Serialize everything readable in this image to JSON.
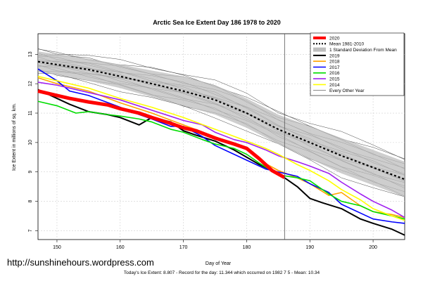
{
  "chart_data": {
    "type": "line",
    "title": "Arctic Sea Ice Extent Day 186 1978 to 2020",
    "xlabel": "Day of Year",
    "ylabel": "Ice Extent in millions of sq. km.",
    "xlim": [
      147,
      205
    ],
    "ylim": [
      6.7,
      13.7
    ],
    "x_ticks": [
      150,
      160,
      170,
      180,
      190,
      200
    ],
    "y_ticks": [
      7,
      8,
      9,
      10,
      11,
      12,
      13
    ],
    "grid": true,
    "legend_position": "top-right",
    "marker_day": 186,
    "mean_band": {
      "name": "Mean 1981-2010",
      "band_name": "1 Standard Deviation From Mean",
      "x": [
        147,
        150,
        155,
        160,
        165,
        170,
        175,
        180,
        185,
        190,
        195,
        200,
        205
      ],
      "mean": [
        12.75,
        12.65,
        12.48,
        12.25,
        12.0,
        11.75,
        11.45,
        11.0,
        10.45,
        10.0,
        9.55,
        9.15,
        8.75
      ],
      "upper": [
        13.1,
        13.0,
        12.85,
        12.65,
        12.45,
        12.25,
        11.95,
        11.5,
        10.95,
        10.55,
        10.15,
        9.75,
        9.35
      ],
      "lower": [
        12.4,
        12.3,
        12.1,
        11.85,
        11.55,
        11.25,
        10.95,
        10.5,
        9.95,
        9.45,
        8.95,
        8.55,
        8.15
      ]
    },
    "series": [
      {
        "name": "2020",
        "color": "#ff0000",
        "width": 5,
        "x": [
          147,
          150,
          152,
          155,
          158,
          160,
          163,
          165,
          168,
          170,
          172,
          175,
          178,
          180,
          182,
          184,
          186
        ],
        "values": [
          11.75,
          11.6,
          11.5,
          11.38,
          11.28,
          11.15,
          11.0,
          10.85,
          10.65,
          10.5,
          10.4,
          10.15,
          9.95,
          9.8,
          9.45,
          9.05,
          8.81
        ]
      },
      {
        "name": "2019",
        "color": "#000000",
        "width": 2,
        "x": [
          147,
          150,
          152,
          155,
          158,
          160,
          163,
          165,
          168,
          170,
          172,
          175,
          178,
          180,
          182,
          185,
          188,
          190,
          192,
          195,
          198,
          200,
          203,
          205
        ],
        "values": [
          11.8,
          11.5,
          11.3,
          11.05,
          10.95,
          10.85,
          10.6,
          10.85,
          10.7,
          10.4,
          10.25,
          10.05,
          9.75,
          9.5,
          9.25,
          8.95,
          8.5,
          8.1,
          7.95,
          7.75,
          7.4,
          7.25,
          7.05,
          6.85
        ]
      },
      {
        "name": "2018",
        "color": "#ffa500",
        "width": 1.6,
        "x": [
          147,
          150,
          155,
          160,
          165,
          170,
          175,
          178,
          180,
          182,
          185,
          188,
          190,
          193,
          195,
          198,
          200,
          203,
          205
        ],
        "values": [
          12.2,
          12.0,
          11.75,
          11.35,
          11.0,
          10.6,
          10.2,
          9.95,
          9.75,
          9.4,
          9.05,
          8.8,
          8.6,
          8.2,
          8.3,
          7.85,
          7.65,
          7.55,
          7.45
        ]
      },
      {
        "name": "2017",
        "color": "#0000ff",
        "width": 1.6,
        "x": [
          147,
          150,
          152,
          155,
          160,
          163,
          165,
          168,
          170,
          173,
          175,
          178,
          180,
          183,
          185,
          188,
          190,
          193,
          195,
          198,
          200,
          203,
          205
        ],
        "values": [
          12.5,
          12.1,
          11.75,
          11.6,
          11.2,
          10.95,
          10.8,
          10.55,
          10.55,
          10.2,
          9.9,
          9.6,
          9.4,
          9.1,
          9.0,
          8.85,
          8.6,
          8.3,
          7.9,
          7.6,
          7.4,
          7.3,
          7.25
        ]
      },
      {
        "name": "2016",
        "color": "#00dd00",
        "width": 1.6,
        "x": [
          147,
          150,
          153,
          155,
          158,
          160,
          163,
          165,
          168,
          170,
          173,
          175,
          178,
          180,
          182,
          185,
          188,
          190,
          193,
          195,
          198,
          200,
          203,
          205
        ],
        "values": [
          11.4,
          11.25,
          11.0,
          11.05,
          10.95,
          10.9,
          10.8,
          10.7,
          10.45,
          10.35,
          10.1,
          9.95,
          9.8,
          9.6,
          9.3,
          8.9,
          8.8,
          8.7,
          8.25,
          8.0,
          7.85,
          7.65,
          7.5,
          7.4
        ]
      },
      {
        "name": "2015",
        "color": "#a020f0",
        "width": 1.6,
        "x": [
          147,
          150,
          155,
          160,
          165,
          170,
          173,
          175,
          178,
          180,
          183,
          185,
          188,
          190,
          193,
          195,
          198,
          200,
          203,
          205
        ],
        "values": [
          12.05,
          11.95,
          11.7,
          11.45,
          11.1,
          10.75,
          10.6,
          10.35,
          10.1,
          10.0,
          9.75,
          9.55,
          9.35,
          9.2,
          8.95,
          8.65,
          8.25,
          8.0,
          7.7,
          7.45
        ]
      },
      {
        "name": "2014",
        "color": "#ffff00",
        "width": 1.6,
        "x": [
          147,
          150,
          155,
          160,
          165,
          170,
          175,
          180,
          183,
          185,
          188,
          190,
          193,
          195,
          198,
          200,
          203,
          205
        ],
        "values": [
          12.25,
          12.1,
          11.85,
          11.5,
          11.2,
          10.85,
          10.45,
          10.05,
          9.8,
          9.6,
          9.25,
          9.05,
          8.7,
          8.4,
          8.05,
          7.75,
          7.5,
          7.35
        ]
      }
    ],
    "legend": [
      "2020",
      "Mean 1981-2010",
      "1 Standard Deviation From Mean",
      "2019",
      "2018",
      "2017",
      "2016",
      "2015",
      "2014",
      "Every Other Year"
    ],
    "other_years_label": "Every Other Year"
  },
  "footer": "Today's Ice Extent: 8.807  - Record for the day: 11.344 which occurred on 1982 7 5  - Mean: 10.34",
  "watermark": "http://sunshinehours.wordpress.com"
}
